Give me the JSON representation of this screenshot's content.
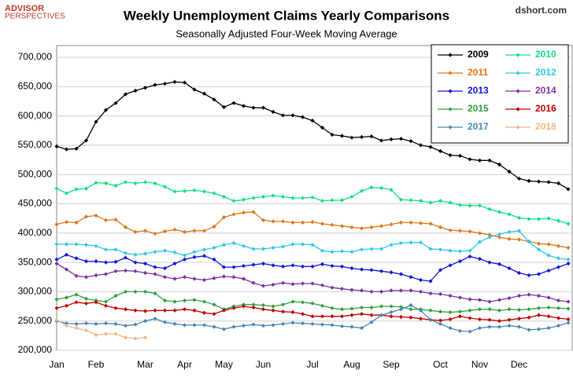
{
  "chart_data": {
    "type": "line",
    "title": "Weekly Unemployment Claims Yearly Comparisons",
    "subtitle": "Seasonally Adjusted Four-Week Moving Average",
    "source": "dshort.com",
    "logo": [
      "ADVISOR",
      "PERSPECTIVES"
    ],
    "legend": "upper right",
    "grid": true,
    "categories": [
      "Jan",
      null,
      null,
      null,
      "Feb",
      null,
      null,
      null,
      null,
      "Mar",
      null,
      null,
      null,
      "Apr",
      null,
      null,
      null,
      "May",
      null,
      null,
      null,
      "Jun",
      null,
      null,
      null,
      null,
      "Jul",
      null,
      null,
      null,
      "Aug",
      null,
      null,
      null,
      "Sep",
      null,
      null,
      null,
      null,
      "Oct",
      null,
      null,
      null,
      "Nov",
      null,
      null,
      null,
      "Dec",
      null,
      null,
      null,
      null,
      null
    ],
    "ylim": [
      200000,
      700000
    ],
    "yticks": [
      {
        "value": 200000,
        "label": "200,000"
      },
      {
        "value": 250000,
        "label": "250,000"
      },
      {
        "value": 300000,
        "label": "300,000"
      },
      {
        "value": 350000,
        "label": "350,000"
      },
      {
        "value": 400000,
        "label": "400,000"
      },
      {
        "value": 450000,
        "label": "450,000"
      },
      {
        "value": 500000,
        "label": "500,000"
      },
      {
        "value": 550000,
        "label": "550,000"
      },
      {
        "value": 600000,
        "label": "600,000"
      },
      {
        "value": 650000,
        "label": "650,000"
      },
      {
        "value": 700000,
        "label": "700,000"
      }
    ],
    "series": [
      {
        "name": "2009",
        "color": "#000000",
        "values": [
          548000,
          543000,
          544000,
          558000,
          590000,
          610000,
          622000,
          637000,
          643000,
          648000,
          653000,
          655000,
          658000,
          657000,
          645000,
          638000,
          628000,
          615000,
          622000,
          617000,
          614000,
          614000,
          607000,
          601000,
          601000,
          598000,
          592000,
          580000,
          568000,
          566000,
          563000,
          564000,
          565000,
          558000,
          560000,
          561000,
          557000,
          550000,
          547000,
          540000,
          533000,
          532000,
          526000,
          524000,
          524000,
          517000,
          505000,
          493000,
          489000,
          488000,
          487000,
          485000,
          475000
        ]
      },
      {
        "name": "2010",
        "color": "#10e080",
        "values": [
          476000,
          468000,
          475000,
          476000,
          486000,
          485000,
          481000,
          487000,
          485000,
          487000,
          485000,
          479000,
          471000,
          472000,
          473000,
          471000,
          468000,
          462000,
          455000,
          457000,
          460000,
          462000,
          464000,
          462000,
          460000,
          460000,
          461000,
          455000,
          456000,
          456000,
          462000,
          472000,
          478000,
          477000,
          474000,
          457000,
          456000,
          455000,
          452000,
          455000,
          452000,
          448000,
          447000,
          447000,
          441000,
          436000,
          432000,
          426000,
          424000,
          424000,
          425000,
          421000,
          416000
        ]
      },
      {
        "name": "2011",
        "color": "#e07818",
        "values": [
          415000,
          419000,
          418000,
          428000,
          430000,
          422000,
          423000,
          410000,
          402000,
          404000,
          399000,
          403000,
          406000,
          402000,
          404000,
          404000,
          411000,
          427000,
          432000,
          435000,
          436000,
          422000,
          420000,
          420000,
          418000,
          418000,
          419000,
          416000,
          414000,
          412000,
          410000,
          408000,
          410000,
          412000,
          415000,
          418000,
          418000,
          417000,
          416000,
          410000,
          405000,
          404000,
          403000,
          400000,
          397000,
          393000,
          390000,
          389000,
          386000,
          382000,
          381000,
          378000,
          375000
        ]
      },
      {
        "name": "2012",
        "color": "#30c8e8",
        "values": [
          381000,
          381000,
          381000,
          380000,
          378000,
          372000,
          372000,
          366000,
          363000,
          365000,
          368000,
          370000,
          367000,
          362000,
          368000,
          372000,
          375000,
          380000,
          383000,
          378000,
          373000,
          373000,
          375000,
          377000,
          381000,
          381000,
          380000,
          370000,
          368000,
          369000,
          368000,
          372000,
          373000,
          373000,
          380000,
          383000,
          384000,
          384000,
          373000,
          372000,
          370000,
          369000,
          370000,
          385000,
          393000,
          398000,
          402000,
          404000,
          385000,
          372000,
          362000,
          357000,
          355000
        ]
      },
      {
        "name": "2013",
        "color": "#1414d8",
        "values": [
          355000,
          363000,
          357000,
          352000,
          352000,
          350000,
          351000,
          358000,
          350000,
          348000,
          342000,
          340000,
          348000,
          355000,
          359000,
          361000,
          355000,
          342000,
          342000,
          344000,
          346000,
          348000,
          345000,
          343000,
          345000,
          343000,
          343000,
          347000,
          344000,
          343000,
          340000,
          338000,
          337000,
          335000,
          333000,
          330000,
          325000,
          320000,
          318000,
          337000,
          345000,
          352000,
          360000,
          356000,
          350000,
          347000,
          340000,
          332000,
          328000,
          330000,
          336000,
          342000,
          348000
        ]
      },
      {
        "name": "2014",
        "color": "#8030a0",
        "values": [
          348000,
          338000,
          327000,
          325000,
          328000,
          330000,
          335000,
          336000,
          335000,
          332000,
          330000,
          325000,
          322000,
          325000,
          322000,
          320000,
          323000,
          326000,
          325000,
          322000,
          315000,
          310000,
          312000,
          315000,
          313000,
          314000,
          314000,
          311000,
          307000,
          305000,
          303000,
          302000,
          300000,
          300000,
          302000,
          302000,
          302000,
          300000,
          297000,
          296000,
          293000,
          290000,
          287000,
          286000,
          283000,
          286000,
          289000,
          293000,
          295000,
          293000,
          290000,
          285000,
          283000
        ]
      },
      {
        "name": "2015",
        "color": "#30a040",
        "values": [
          287000,
          290000,
          295000,
          288000,
          285000,
          283000,
          293000,
          300000,
          300000,
          300000,
          297000,
          285000,
          283000,
          285000,
          286000,
          283000,
          278000,
          270000,
          275000,
          278000,
          278000,
          277000,
          275000,
          278000,
          283000,
          282000,
          280000,
          276000,
          272000,
          270000,
          271000,
          273000,
          273000,
          275000,
          275000,
          274000,
          270000,
          270000,
          268000,
          266000,
          265000,
          266000,
          268000,
          270000,
          270000,
          268000,
          270000,
          269000,
          270000,
          272000,
          273000,
          272000,
          271000
        ]
      },
      {
        "name": "2016",
        "color": "#c00000",
        "values": [
          272000,
          276000,
          282000,
          280000,
          282000,
          276000,
          272000,
          270000,
          268000,
          267000,
          268000,
          268000,
          268000,
          270000,
          268000,
          264000,
          262000,
          268000,
          272000,
          275000,
          273000,
          270000,
          268000,
          266000,
          265000,
          262000,
          258000,
          258000,
          258000,
          258000,
          260000,
          262000,
          260000,
          260000,
          258000,
          257000,
          256000,
          254000,
          252000,
          251000,
          253000,
          258000,
          255000,
          253000,
          252000,
          250000,
          252000,
          254000,
          256000,
          260000,
          258000,
          255000,
          253000
        ]
      },
      {
        "name": "2017",
        "color": "#4a86b8",
        "values": [
          250000,
          246000,
          245000,
          246000,
          245000,
          246000,
          245000,
          242000,
          244000,
          250000,
          254000,
          248000,
          245000,
          243000,
          243000,
          243000,
          240000,
          236000,
          240000,
          242000,
          244000,
          242000,
          243000,
          245000,
          247000,
          246000,
          245000,
          244000,
          243000,
          241000,
          240000,
          238000,
          248000,
          260000,
          265000,
          270000,
          277000,
          268000,
          252000,
          245000,
          238000,
          233000,
          232000,
          238000,
          240000,
          240000,
          242000,
          240000,
          235000,
          236000,
          238000,
          242000,
          247000
        ]
      },
      {
        "name": "2018",
        "color": "#f4b888",
        "values": [
          252000,
          242000,
          238000,
          234000,
          226000,
          228000,
          228000,
          222000,
          220000,
          222000,
          null,
          null,
          null,
          null,
          null,
          null,
          null,
          null,
          null,
          null,
          null,
          null,
          null,
          null,
          null,
          null,
          null,
          null,
          null,
          null,
          null,
          null,
          null,
          null,
          null,
          null,
          null,
          null,
          null,
          null,
          null,
          null,
          null,
          null,
          null,
          null,
          null,
          null,
          null,
          null,
          null,
          null,
          null
        ]
      }
    ]
  }
}
